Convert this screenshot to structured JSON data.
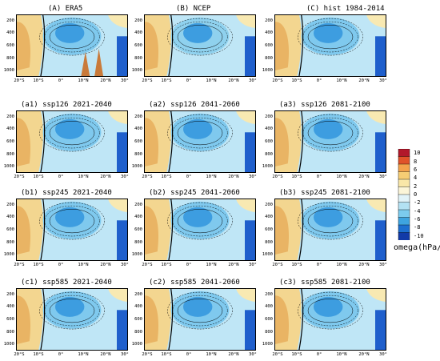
{
  "panels": [
    {
      "label": "(A)",
      "title": "ERA5"
    },
    {
      "label": "(B)",
      "title": "NCEP"
    },
    {
      "label": "(C)",
      "title": "hist 1984-2014"
    },
    {
      "label": "(a1)",
      "title": "ssp126 2021-2040"
    },
    {
      "label": "(a2)",
      "title": "ssp126 2041-2060"
    },
    {
      "label": "(a3)",
      "title": "ssp126 2081-2100"
    },
    {
      "label": "(b1)",
      "title": "ssp245 2021-2040"
    },
    {
      "label": "(b2)",
      "title": "ssp245 2041-2060"
    },
    {
      "label": "(b3)",
      "title": "ssp245 2081-2100"
    },
    {
      "label": "(c1)",
      "title": "ssp585 2021-2040"
    },
    {
      "label": "(c2)",
      "title": "ssp585 2041-2060"
    },
    {
      "label": "(c3)",
      "title": "ssp585 2081-2100"
    }
  ],
  "chart_data": {
    "type": "heatmap",
    "x_ticks": [
      "20°S",
      "10°S",
      "0°",
      "10°N",
      "20°N",
      "30°"
    ],
    "y_ticks": [
      "200",
      "400",
      "600",
      "800",
      "1000"
    ],
    "ylim": [
      1000,
      100
    ],
    "xlim": [
      -20,
      30
    ],
    "colorbar": {
      "title": "omega(hPa/s)",
      "ticks": [
        "10",
        "8",
        "6",
        "4",
        "2",
        "0",
        "-2",
        "-4",
        "-6",
        "-8",
        "-10"
      ],
      "colors": [
        "#b2182b",
        "#e0522a",
        "#f4a24c",
        "#f6cd74",
        "#f9e7a8",
        "#fbf5d8",
        "#e1f3f8",
        "#b3e2f3",
        "#7ccbee",
        "#3ea4e0",
        "#1d6fd0",
        "#123aa8"
      ]
    }
  }
}
